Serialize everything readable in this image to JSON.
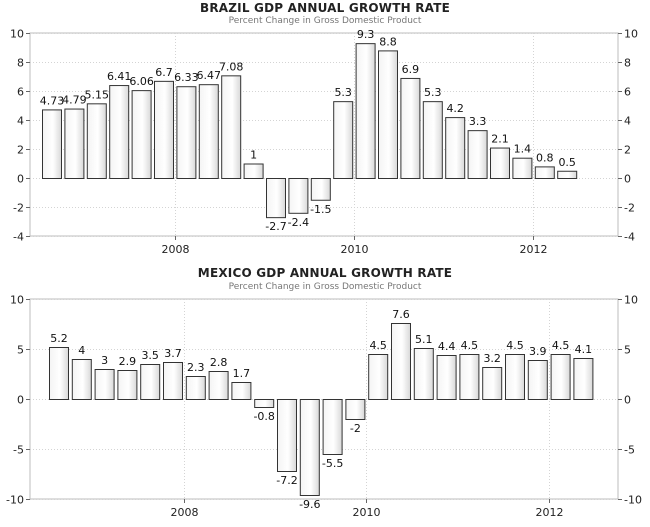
{
  "chart_data": [
    {
      "type": "bar",
      "title": "BRAZIL GDP ANNUAL GROWTH RATE",
      "subtitle": "Percent Change in Gross Domestic Product",
      "xlabel": "",
      "ylabel": "",
      "x_ticks": [
        {
          "label": "2008",
          "index": 5.5
        },
        {
          "label": "2010",
          "index": 13.5
        },
        {
          "label": "2012",
          "index": 21.5
        }
      ],
      "y_ticks": [
        10,
        8,
        6,
        4,
        2,
        0,
        -2,
        -4
      ],
      "ylim": [
        -4,
        10
      ],
      "grid": true,
      "series": [
        {
          "values": [
            4.73,
            4.79,
            5.15,
            6.41,
            6.06,
            6.7,
            6.33,
            6.47,
            7.08,
            1,
            -2.7,
            -2.4,
            -1.5,
            5.3,
            9.3,
            8.8,
            6.9,
            5.3,
            4.2,
            3.3,
            2.1,
            1.4,
            0.8,
            0.5
          ]
        }
      ]
    },
    {
      "type": "bar",
      "title": "MEXICO GDP ANNUAL GROWTH RATE",
      "subtitle": "Percent Change in Gross Domestic Product",
      "xlabel": "",
      "ylabel": "",
      "x_ticks": [
        {
          "label": "2008",
          "index": 5.5
        },
        {
          "label": "2010",
          "index": 13.5
        },
        {
          "label": "2012",
          "index": 21.5
        }
      ],
      "y_ticks": [
        10,
        5,
        0,
        -5,
        -10
      ],
      "ylim": [
        -10,
        10
      ],
      "grid": true,
      "series": [
        {
          "values": [
            5.2,
            4,
            3,
            2.9,
            3.5,
            3.7,
            2.3,
            2.8,
            1.7,
            -0.8,
            -7.2,
            -9.6,
            -5.5,
            -2,
            4.5,
            7.6,
            5.1,
            4.4,
            4.5,
            3.2,
            4.5,
            3.9,
            4.5,
            4.1
          ]
        }
      ]
    }
  ]
}
